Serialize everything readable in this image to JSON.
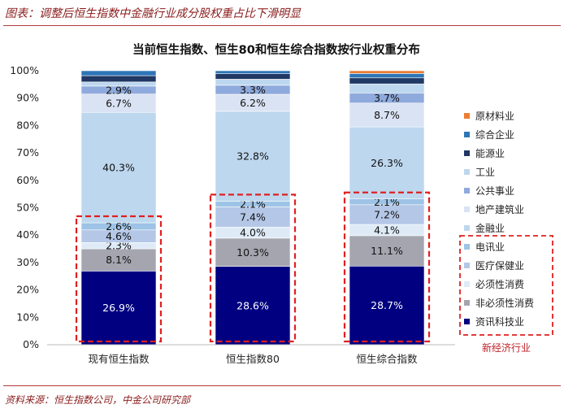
{
  "figure_title": "图表：调整后恒生指数中金融行业成分股权重占比下滑明显",
  "source": "资料来源：恒生指数公司，中金公司研究部",
  "new_economy_label": "新经济行业",
  "colors": {
    "原材料业": "#ed7d31",
    "综合企业": "#2e75b6",
    "能源业": "#203864",
    "工业": "#bdd7ee",
    "公共事业": "#8faadc",
    "地产建筑业": "#dae3f3",
    "金融业": "#bdd7ee",
    "电讯业": "#9dc3e6",
    "医疗保健业": "#b4c7e7",
    "必须性消费": "#deebf7",
    "非必须性消费": "#a5a5b0",
    "资讯科技业": "#000080",
    "highlight": "#e02020",
    "rule": "#b33a3a"
  },
  "chart_data": {
    "type": "bar",
    "stacked": true,
    "title": "当前恒生指数、恒生80和恒生综合指数按行业权重分布",
    "categories": [
      "现有恒生指数",
      "恒生指数80",
      "恒生综合指数"
    ],
    "ylim": [
      0,
      100
    ],
    "yticks": [
      "0%",
      "10%",
      "20%",
      "30%",
      "40%",
      "50%",
      "60%",
      "70%",
      "80%",
      "90%",
      "100%"
    ],
    "legend_position": "right",
    "series": [
      {
        "name": "资讯科技业",
        "values": [
          26.9,
          28.6,
          28.7
        ],
        "labels": [
          "26.9%",
          "28.6%",
          "28.7%"
        ],
        "label_color": "#ffffff"
      },
      {
        "name": "非必须性消费",
        "values": [
          8.1,
          10.3,
          11.1
        ],
        "labels": [
          "8.1%",
          "10.3%",
          "11.1%"
        ],
        "label_color": "#111111"
      },
      {
        "name": "必须性消费",
        "values": [
          2.3,
          4.0,
          4.1
        ],
        "labels": [
          "2.3%",
          "4.0%",
          "4.1%"
        ],
        "label_color": "#111111"
      },
      {
        "name": "医疗保健业",
        "values": [
          4.6,
          7.4,
          7.2
        ],
        "labels": [
          "4.6%",
          "7.4%",
          "7.2%"
        ],
        "label_color": "#111111"
      },
      {
        "name": "电讯业",
        "values": [
          2.6,
          2.1,
          2.1
        ],
        "labels": [
          "2.6%",
          "2.1%",
          "2.1%"
        ],
        "label_color": "#111111"
      },
      {
        "name": "金融业",
        "values": [
          40.3,
          32.8,
          26.3
        ],
        "labels": [
          "40.3%",
          "32.8%",
          "26.3%"
        ],
        "label_color": "#111111"
      },
      {
        "name": "地产建筑业",
        "values": [
          6.7,
          6.2,
          8.7
        ],
        "labels": [
          "6.7%",
          "6.2%",
          "8.7%"
        ],
        "label_color": "#111111"
      },
      {
        "name": "公共事业",
        "values": [
          2.9,
          3.3,
          3.7
        ],
        "labels": [
          "2.9%",
          "3.3%",
          "3.7%"
        ],
        "label_color": "#111111"
      },
      {
        "name": "工业",
        "values": [
          1.5,
          2.2,
          3.3
        ],
        "labels": [
          "",
          "",
          ""
        ],
        "label_color": "#111111"
      },
      {
        "name": "能源业",
        "values": [
          2.3,
          2.0,
          2.2
        ],
        "labels": [
          "",
          "",
          ""
        ],
        "label_color": "#111111"
      },
      {
        "name": "综合企业",
        "values": [
          1.8,
          1.1,
          1.6
        ],
        "labels": [
          "",
          "",
          ""
        ],
        "label_color": "#111111"
      },
      {
        "name": "原材料业",
        "values": [
          0.0,
          0.0,
          1.0
        ],
        "labels": [
          "",
          "",
          ""
        ],
        "label_color": "#111111"
      }
    ],
    "legend_order": [
      "原材料业",
      "综合企业",
      "能源业",
      "工业",
      "公共事业",
      "地产建筑业",
      "金融业",
      "电讯业",
      "医疗保健业",
      "必须性消费",
      "非必须性消费",
      "资讯科技业"
    ],
    "new_economy_sectors": [
      "电讯业",
      "医疗保健业",
      "必须性消费",
      "非必须性消费",
      "资讯科技业"
    ]
  }
}
